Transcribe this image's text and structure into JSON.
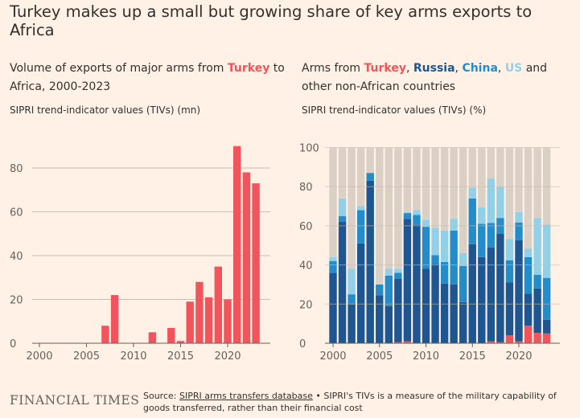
{
  "title": "Turkey makes up a small but growing share of key arms exports to Africa",
  "colors": {
    "turkey": "#f2545b",
    "russia": "#1d5690",
    "china": "#238cca",
    "us": "#92d0e8",
    "other": "#dbd0c6",
    "background": "#fff1e5"
  },
  "left": {
    "subtitle_a": "Volume of exports of major arms from ",
    "subtitle_turkey": "Turkey",
    "subtitle_b": " to Africa, 2000-2023",
    "unit": "SIPRI trend-indicator values (TIVs) (mn)"
  },
  "right": {
    "subtitle_a": "Arms from ",
    "turkey": "Turkey",
    "sep1": ", ",
    "russia": "Russia",
    "sep2": ", ",
    "china": "China",
    "sep3": ", ",
    "us": "US",
    "subtitle_b": " and other non-African countries",
    "unit": "SIPRI trend-indicator values (TIVs) (%)"
  },
  "footer": {
    "logo": "FINANCIAL TIMES",
    "source_prefix": "Source: ",
    "source_link": "SIPRI arms transfers database",
    "source_rest": " • SIPRI's TIVs is a measure of the military capability of goods transferred, rather than their financial cost"
  },
  "chart_data": [
    {
      "type": "bar",
      "xlim": [
        2000,
        2023
      ],
      "ylim": [
        0,
        95
      ],
      "yticks": [
        0,
        20,
        40,
        60,
        80
      ],
      "xticks": [
        2000,
        2005,
        2010,
        2015,
        2020
      ],
      "grid": true,
      "x": [
        2000,
        2001,
        2002,
        2003,
        2004,
        2005,
        2006,
        2007,
        2008,
        2009,
        2010,
        2011,
        2012,
        2013,
        2014,
        2015,
        2016,
        2017,
        2018,
        2019,
        2020,
        2021,
        2022,
        2023
      ],
      "values": [
        0,
        0,
        0,
        0,
        0,
        0,
        0,
        8,
        22,
        0,
        0,
        0,
        5,
        0,
        7,
        1,
        19,
        28,
        21,
        35,
        20,
        90,
        78,
        73
      ]
    },
    {
      "type": "bar",
      "stacked": true,
      "ylim": [
        0,
        100
      ],
      "yticks": [
        0,
        20,
        40,
        60,
        80,
        100
      ],
      "xticks": [
        2000,
        2005,
        2010,
        2015,
        2020
      ],
      "grid": true,
      "x": [
        2000,
        2001,
        2002,
        2003,
        2004,
        2005,
        2006,
        2007,
        2008,
        2009,
        2010,
        2011,
        2012,
        2013,
        2014,
        2015,
        2016,
        2017,
        2018,
        2019,
        2020,
        2021,
        2022,
        2023
      ],
      "series": [
        {
          "name": "Turkey",
          "values": [
            0,
            0,
            0,
            0,
            0,
            0,
            0,
            0.5,
            1,
            0,
            0,
            0,
            0,
            0,
            0,
            0,
            0.2,
            1,
            0.5,
            4,
            1,
            9,
            5.3,
            5
          ]
        },
        {
          "name": "Russia",
          "values": [
            36,
            62,
            20,
            51,
            83,
            24.5,
            19,
            32.5,
            62.5,
            60.5,
            38,
            40.5,
            30.5,
            30,
            21,
            50.6,
            43.8,
            48,
            55.5,
            27,
            51.7,
            16.4,
            22.7,
            7
          ]
        },
        {
          "name": "China",
          "values": [
            6,
            3,
            5,
            17,
            4,
            5.5,
            15.5,
            3,
            3,
            5,
            21.5,
            4.5,
            11,
            27.5,
            18.5,
            23.4,
            17,
            12.4,
            8,
            11.4,
            9,
            18.6,
            7,
            21.4
          ]
        },
        {
          "name": "US",
          "values": [
            2,
            9,
            13,
            2,
            0,
            0,
            3.5,
            2,
            0.5,
            2.5,
            3.5,
            14,
            16,
            6.1,
            6.5,
            5.5,
            8.5,
            22.6,
            16,
            10.9,
            5.3,
            4.4,
            29,
            27.3
          ]
        },
        {
          "name": "other",
          "values": [
            56,
            26,
            62,
            30,
            13,
            70,
            62,
            62,
            33,
            32,
            37,
            41,
            42.5,
            36.4,
            54,
            20.5,
            30.5,
            16,
            20,
            46.7,
            33,
            51.6,
            36,
            39.3
          ]
        }
      ]
    }
  ]
}
